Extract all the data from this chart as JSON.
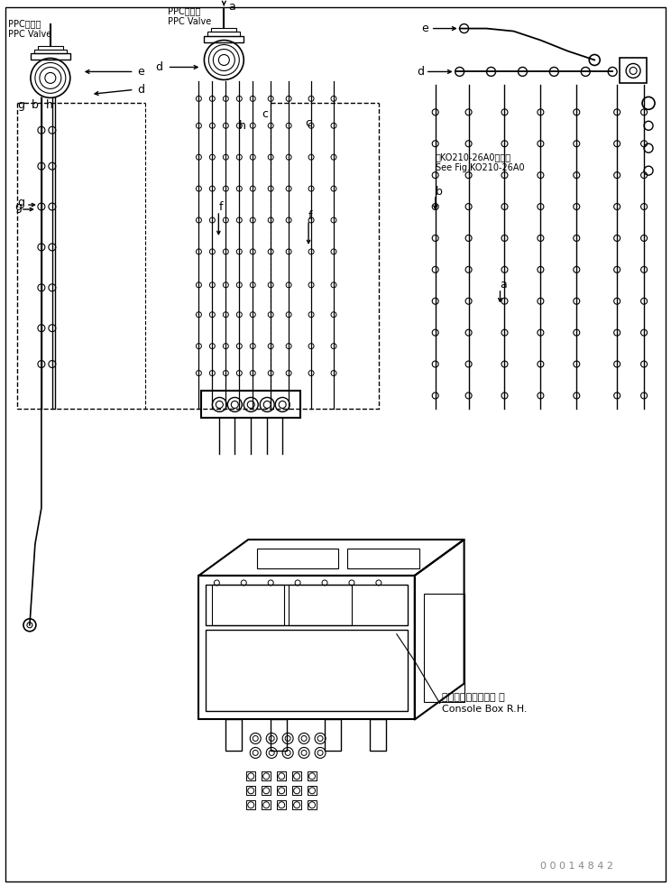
{
  "bg_color": "#ffffff",
  "line_color": "#000000",
  "fig_width": 7.44,
  "fig_height": 9.82,
  "dpi": 100,
  "labels": {
    "ppc_valve_left_jp": "PPCバルブ",
    "ppc_valve_left_en": "PPC Valve",
    "ppc_valve_right_jp": "PPCバルブ",
    "ppc_valve_right_en": "PPC Valve",
    "console_box_jp": "コンソールボックス 右",
    "console_box_en": "Console Box R.H.",
    "see_fig_jp": "第KO210-26A0図参照",
    "see_fig_en": "See Fig.KO210-26A0",
    "part_num": "0 0 0 1 4 8 4 2"
  },
  "letter_labels": [
    "a",
    "b",
    "c",
    "d",
    "e",
    "f",
    "g",
    "h"
  ]
}
